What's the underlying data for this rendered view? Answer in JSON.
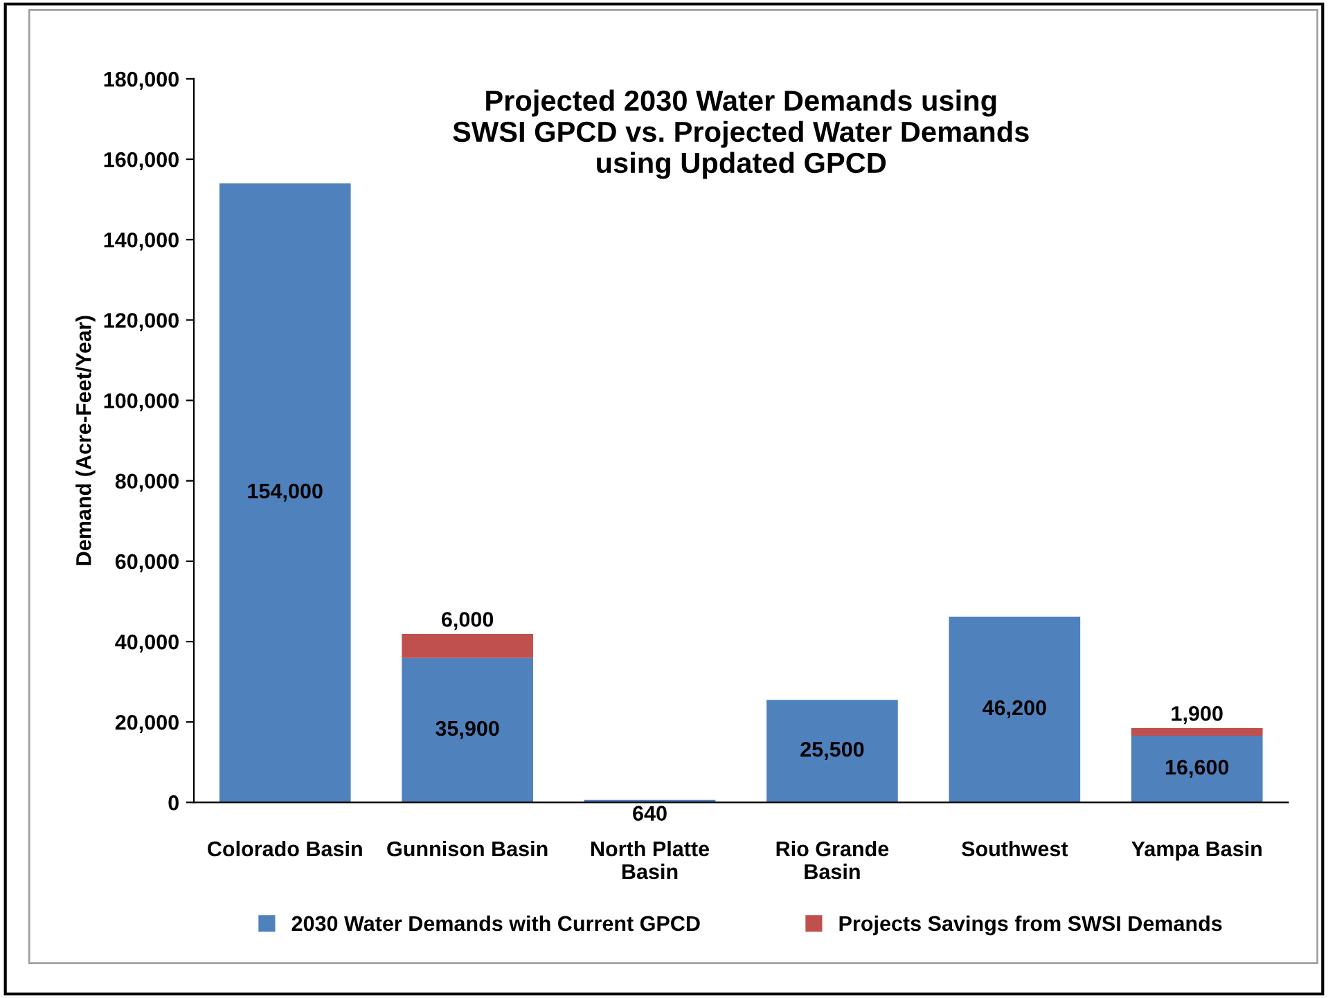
{
  "chart_data": {
    "type": "bar",
    "stacked": true,
    "title": "Projected 2030 Water Demands using\nSWSI GPCD vs. Projected Water Demands\nusing Updated GPCD",
    "ylabel": "Demand (Acre-Feet/Year)",
    "categories": [
      "Colorado Basin",
      "Gunnison Basin",
      "North Platte\nBasin",
      "Rio Grande\nBasin",
      "Southwest",
      "Yampa Basin"
    ],
    "series": [
      {
        "name": "2030 Water Demands with Current GPCD",
        "color": "#4f81bd",
        "values": [
          154000,
          35900,
          640,
          25500,
          46200,
          16600
        ],
        "value_labels": [
          "154,000",
          "35,900",
          "640",
          "25,500",
          "46,200",
          "16,600"
        ]
      },
      {
        "name": "Projects Savings from SWSI Demands",
        "color": "#c0504d",
        "values": [
          null,
          6000,
          null,
          null,
          null,
          1900
        ],
        "value_labels": [
          null,
          "6,000",
          null,
          null,
          null,
          "1,900"
        ]
      }
    ],
    "ylim": [
      0,
      180000
    ],
    "yticks": [
      0,
      {
        "value": 20000,
        "label": "20,000"
      },
      {
        "value": 40000,
        "label": "40,000"
      },
      {
        "value": 60000,
        "label": "60,000"
      },
      {
        "value": 80000,
        "label": "80,000"
      },
      {
        "value": 100000,
        "label": "100,000"
      },
      {
        "value": 120000,
        "label": "120,000"
      },
      {
        "value": 140000,
        "label": "140,000"
      },
      {
        "value": 160000,
        "label": "160,000"
      },
      {
        "value": 180000,
        "label": "180,000"
      }
    ],
    "grid": false,
    "legend": "bottom"
  }
}
